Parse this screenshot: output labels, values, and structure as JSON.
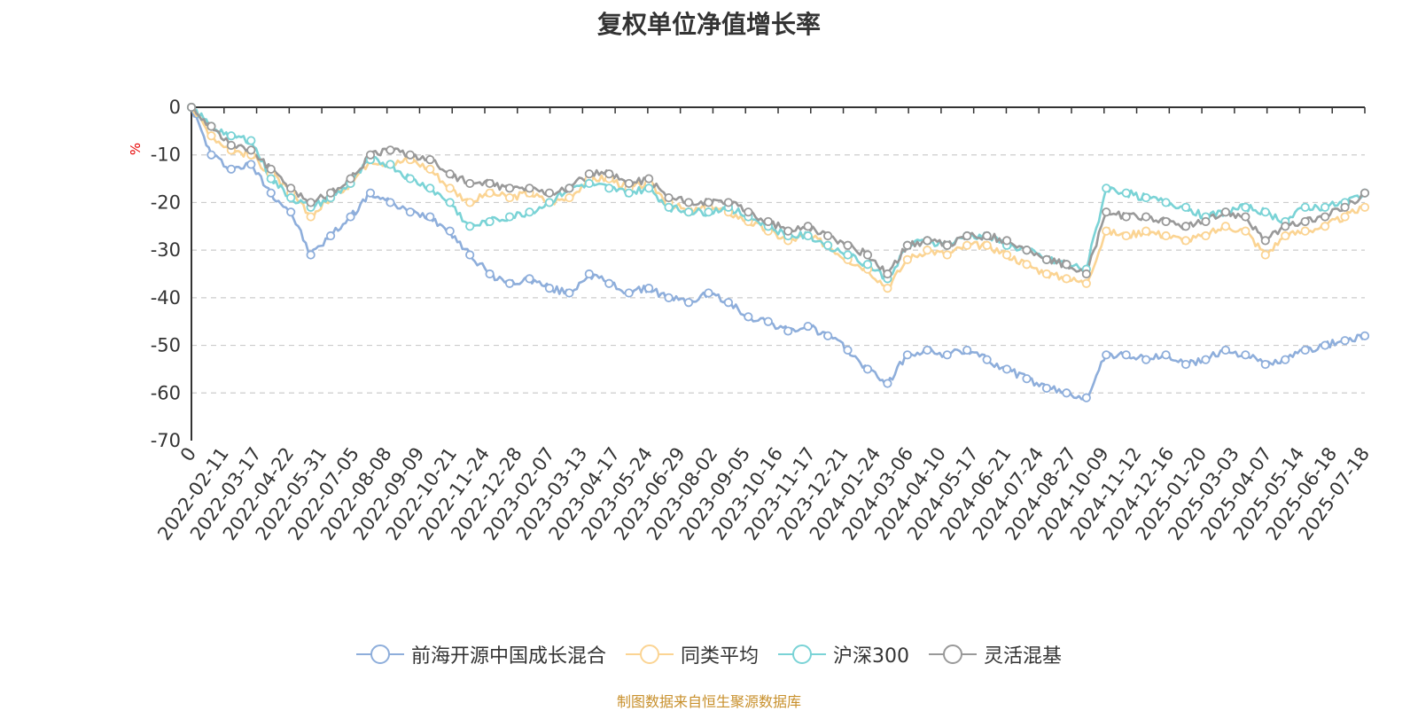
{
  "chart_data": {
    "type": "line",
    "title": "复权单位净值增长率",
    "ylabel": "%",
    "ylim": [
      -70,
      0
    ],
    "yticks": [
      0,
      -10,
      -20,
      -30,
      -40,
      -50,
      -60,
      -70
    ],
    "x_tick_labels": [
      "0",
      "2022-02-11",
      "2022-03-17",
      "2022-04-22",
      "2022-05-31",
      "2022-07-05",
      "2022-08-08",
      "2022-09-09",
      "2022-10-21",
      "2022-11-24",
      "2022-12-28",
      "2023-02-07",
      "2023-03-13",
      "2023-04-17",
      "2023-05-24",
      "2023-06-29",
      "2023-08-02",
      "2023-09-05",
      "2023-10-16",
      "2023-11-17",
      "2023-12-21",
      "2024-01-24",
      "2024-03-06",
      "2024-04-10",
      "2024-05-17",
      "2024-06-21",
      "2024-07-24",
      "2024-08-27",
      "2024-10-09",
      "2024-11-12",
      "2024-12-16",
      "2025-01-20",
      "2025-03-03",
      "2025-04-07",
      "2025-05-14",
      "2025-06-18",
      "2025-07-18"
    ],
    "grid": "horizontal-dashed",
    "legend_position": "bottom-center",
    "series": [
      {
        "name": "前海开源中国成长混合",
        "color": "#8eaedb",
        "values": [
          0,
          -10,
          -13,
          -12,
          -18,
          -22,
          -31,
          -27,
          -23,
          -18,
          -20,
          -22,
          -23,
          -26,
          -31,
          -35,
          -37,
          -36,
          -38,
          -39,
          -35,
          -37,
          -39,
          -38,
          -40,
          -41,
          -39,
          -41,
          -44,
          -45,
          -47,
          -46,
          -48,
          -51,
          -55,
          -58,
          -52,
          -51,
          -52,
          -51,
          -53,
          -55,
          -57,
          -59,
          -60,
          -61,
          -52,
          -52,
          -53,
          -52,
          -54,
          -53,
          -51,
          -52,
          -54,
          -53,
          -51,
          -50,
          -49,
          -48
        ]
      },
      {
        "name": "同类平均",
        "color": "#fbd493",
        "values": [
          0,
          -6,
          -9,
          -10,
          -14,
          -18,
          -23,
          -19,
          -16,
          -11,
          -12,
          -11,
          -13,
          -17,
          -20,
          -18,
          -19,
          -18,
          -20,
          -19,
          -15,
          -15,
          -17,
          -16,
          -20,
          -22,
          -21,
          -22,
          -24,
          -26,
          -28,
          -27,
          -29,
          -32,
          -34,
          -38,
          -32,
          -30,
          -31,
          -29,
          -29,
          -31,
          -33,
          -35,
          -36,
          -37,
          -26,
          -27,
          -26,
          -27,
          -28,
          -27,
          -25,
          -26,
          -31,
          -27,
          -26,
          -25,
          -23,
          -21
        ]
      },
      {
        "name": "沪深300",
        "color": "#7ad3d6",
        "values": [
          0,
          -4,
          -6,
          -7,
          -15,
          -19,
          -21,
          -19,
          -16,
          -11,
          -12,
          -15,
          -17,
          -20,
          -25,
          -24,
          -23,
          -22,
          -20,
          -17,
          -16,
          -17,
          -18,
          -17,
          -21,
          -22,
          -22,
          -21,
          -23,
          -25,
          -27,
          -27,
          -29,
          -31,
          -33,
          -36,
          -29,
          -28,
          -29,
          -27,
          -27,
          -29,
          -30,
          -32,
          -33,
          -34,
          -17,
          -18,
          -19,
          -20,
          -21,
          -23,
          -22,
          -21,
          -22,
          -24,
          -21,
          -21,
          -20,
          -18
        ]
      },
      {
        "name": "灵活混基",
        "color": "#999999",
        "values": [
          0,
          -4,
          -8,
          -9,
          -13,
          -17,
          -20,
          -18,
          -15,
          -10,
          -9,
          -10,
          -11,
          -14,
          -16,
          -16,
          -17,
          -17,
          -18,
          -17,
          -14,
          -14,
          -16,
          -15,
          -19,
          -20,
          -20,
          -20,
          -22,
          -24,
          -26,
          -25,
          -27,
          -29,
          -31,
          -35,
          -29,
          -28,
          -29,
          -27,
          -27,
          -28,
          -30,
          -32,
          -33,
          -35,
          -22,
          -23,
          -23,
          -24,
          -25,
          -24,
          -22,
          -23,
          -28,
          -25,
          -24,
          -23,
          -21,
          -18
        ]
      }
    ]
  },
  "source_note": "制图数据来自恒生聚源数据库"
}
